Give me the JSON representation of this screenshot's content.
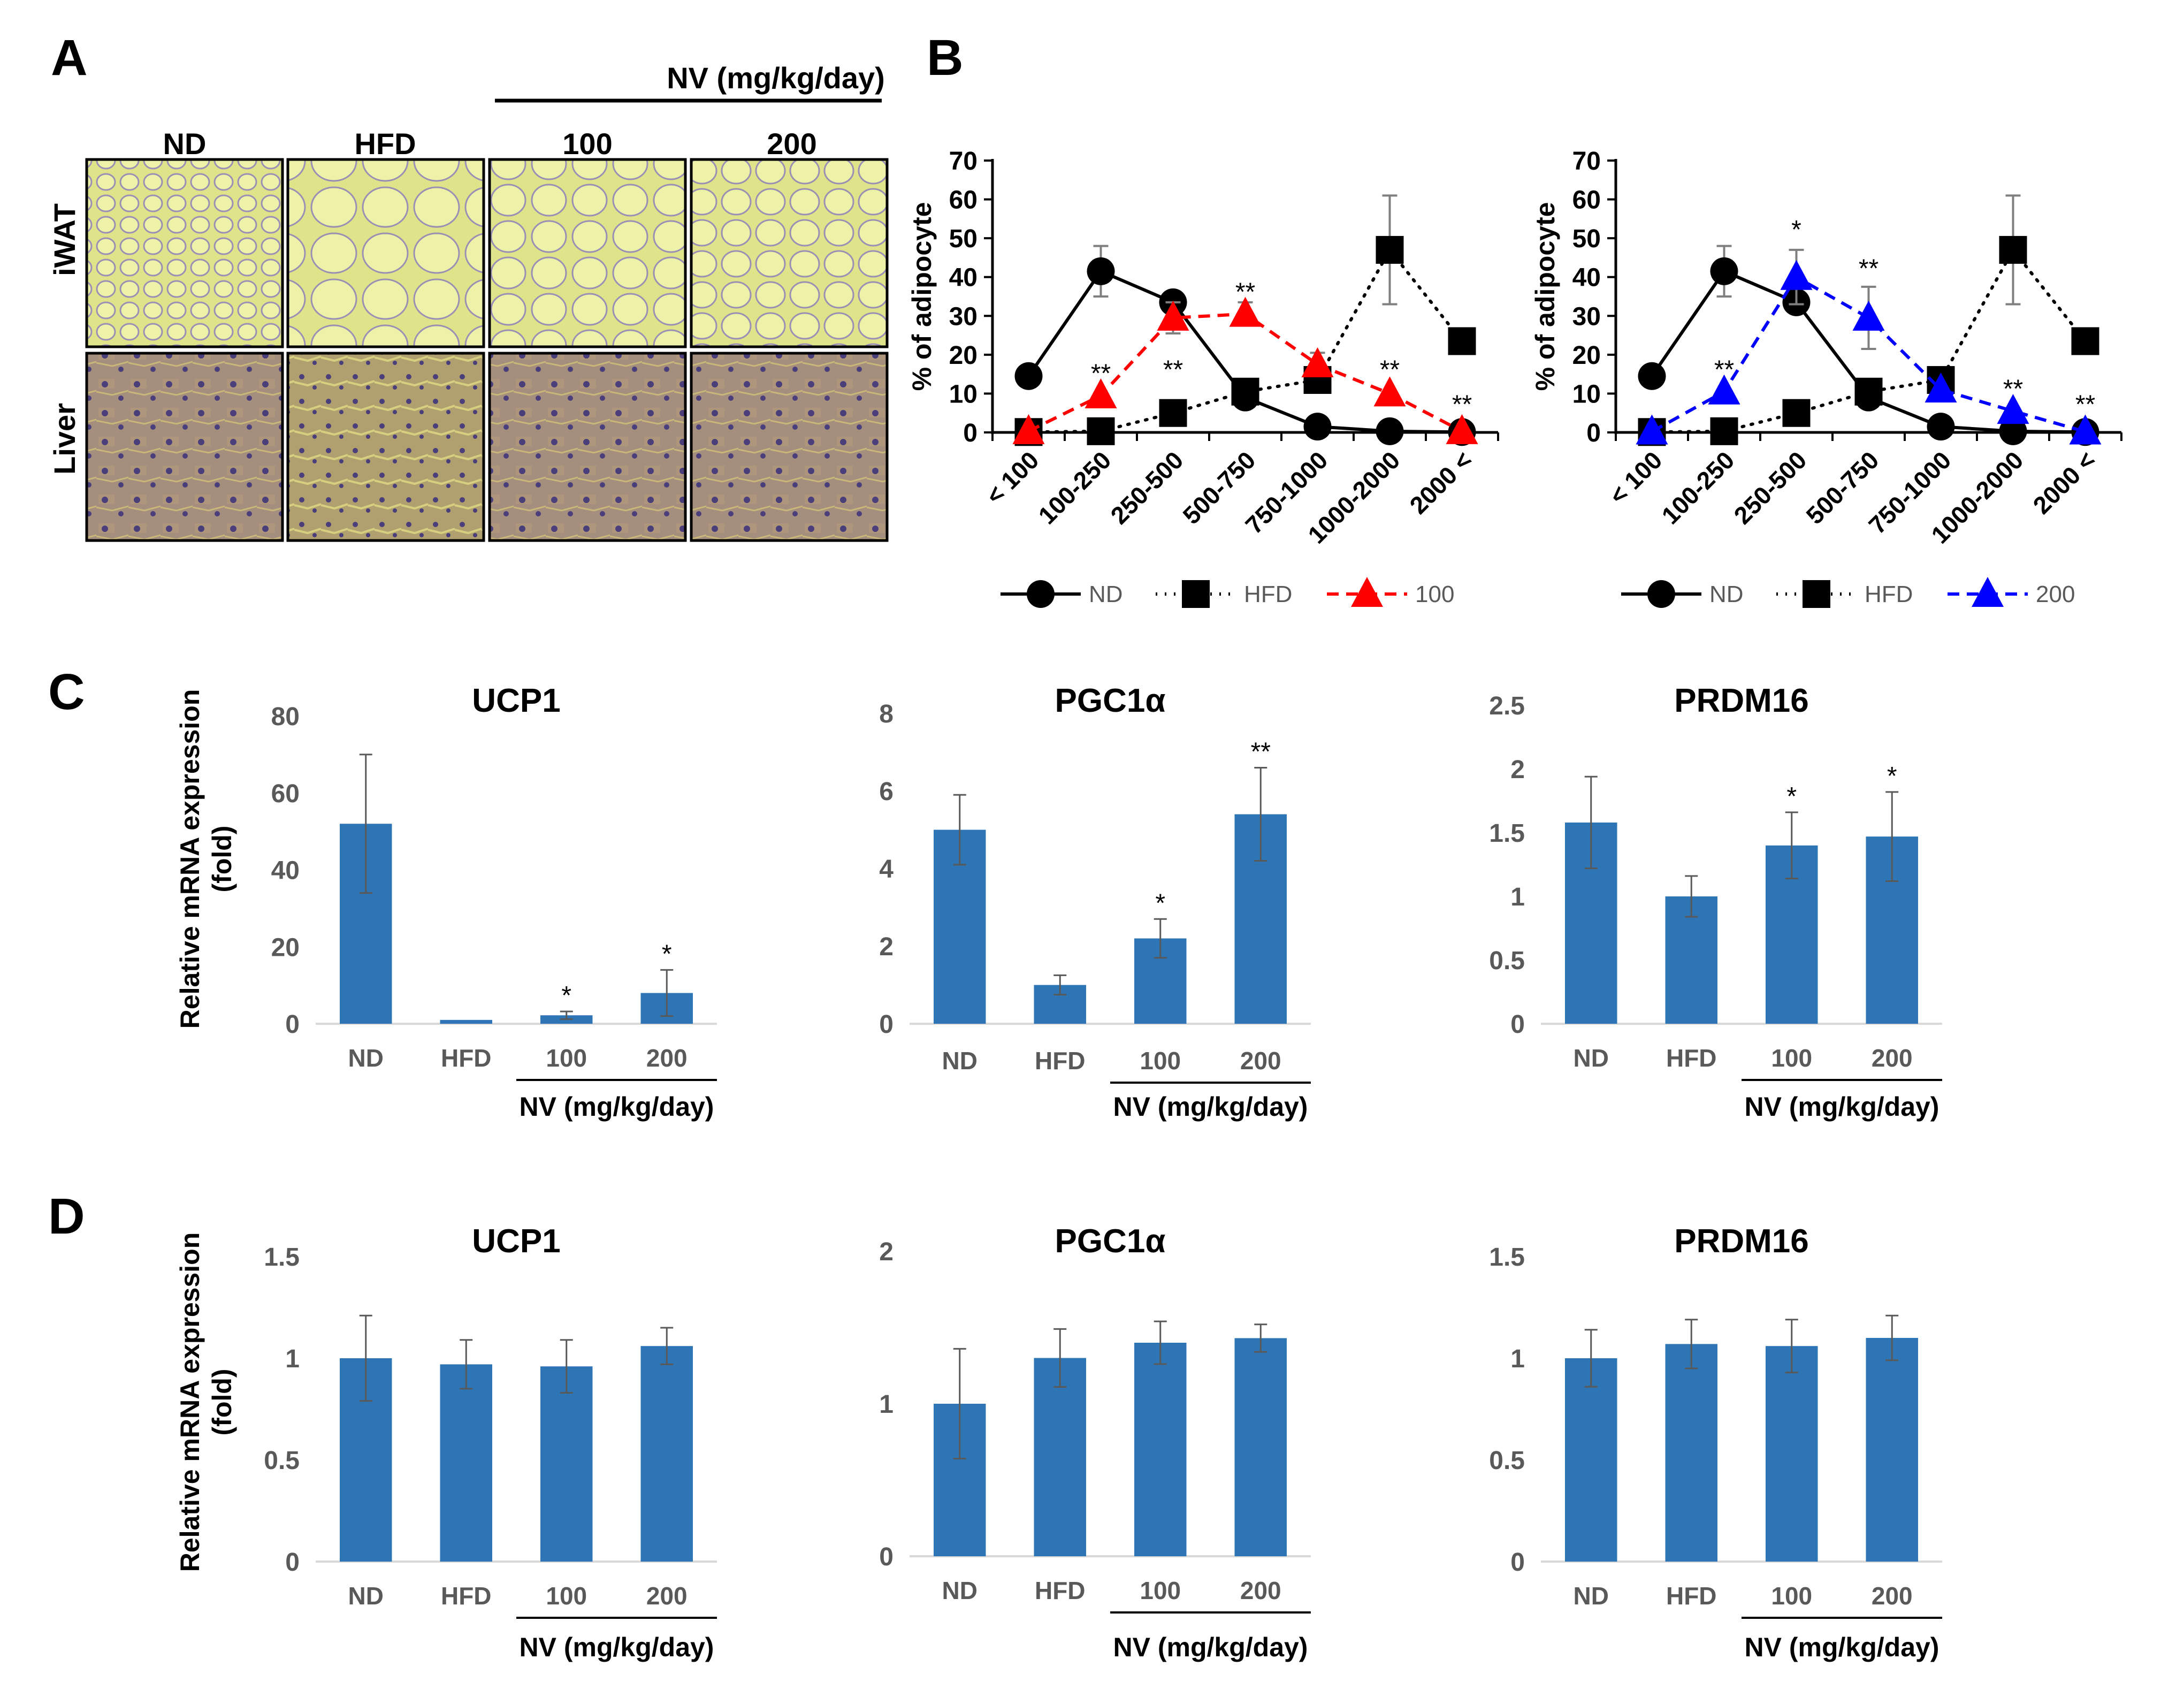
{
  "panel_a": {
    "letter": "A",
    "group_label": "NV (mg/kg/day)",
    "columns": [
      "ND",
      "HFD",
      "100",
      "200"
    ],
    "rows": [
      "iWAT",
      "Liver"
    ],
    "colors": {
      "iwat_bg": "#dfe38a",
      "iwat_cell": "#eef1a8",
      "iwat_membrane": "#9a8fb4",
      "liver_bg": "#a48e7e",
      "liver_nuclei": "#4a3f7a"
    }
  },
  "panel_b_letter": "B",
  "panel_c_letter": "C",
  "panel_d_letter": "D",
  "shared_group_label": "NV (mg/kg/day)",
  "ylabel_expr": [
    "Relative mRNA expression",
    "(fold)"
  ],
  "chart_data": [
    {
      "id": "b_left",
      "type": "line",
      "categories": [
        "< 100",
        "100-250",
        "250-500",
        "500-750",
        "750-1000",
        "1000-2000",
        "2000 <"
      ],
      "ylabel": "% of adipocyte",
      "ylim": [
        0,
        70
      ],
      "yticks": [
        0,
        10,
        20,
        30,
        40,
        50,
        60,
        70
      ],
      "series": [
        {
          "name": "ND",
          "values": [
            14.5,
            41.5,
            33.5,
            9,
            1.5,
            0.3,
            0.1
          ],
          "errors": [
            0,
            6.5,
            1.5,
            0,
            0,
            0,
            0
          ],
          "color": "#000000",
          "style": "solid",
          "marker": "circle"
        },
        {
          "name": "HFD",
          "values": [
            0.1,
            0.3,
            5,
            10.5,
            13.5,
            47,
            23.5
          ],
          "errors": [
            0,
            0,
            0,
            0,
            3,
            14,
            0
          ],
          "color": "#000000",
          "style": "dotted",
          "marker": "square"
        },
        {
          "name": "100",
          "values": [
            0.3,
            9.5,
            29.5,
            30.5,
            17.5,
            10,
            0.3
          ],
          "errors": [
            0,
            0,
            4,
            3,
            3,
            0,
            0
          ],
          "color": "#ff0000",
          "style": "dashed",
          "marker": "triangle"
        }
      ],
      "annotations": [
        {
          "x": "100-250",
          "text": "**",
          "y": 13
        },
        {
          "x": "250-500",
          "text": "**",
          "y": 14
        },
        {
          "x": "500-750",
          "text": "**",
          "y": 34
        },
        {
          "x": "1000-2000",
          "text": "**",
          "y": 14
        },
        {
          "x": "2000 <",
          "text": "**",
          "y": 5
        }
      ]
    },
    {
      "id": "b_right",
      "type": "line",
      "categories": [
        "< 100",
        "100-250",
        "250-500",
        "500-750",
        "750-1000",
        "1000-2000",
        "2000 <"
      ],
      "ylabel": "% of adipocyte",
      "ylim": [
        0,
        70
      ],
      "yticks": [
        0,
        10,
        20,
        30,
        40,
        50,
        60,
        70
      ],
      "series": [
        {
          "name": "ND",
          "values": [
            14.5,
            41.5,
            33.5,
            9,
            1.5,
            0.3,
            0.1
          ],
          "errors": [
            0,
            6.5,
            1.5,
            0,
            0,
            0,
            0
          ],
          "color": "#000000",
          "style": "solid",
          "marker": "circle"
        },
        {
          "name": "HFD",
          "values": [
            0.1,
            0.3,
            5,
            10.5,
            13.5,
            47,
            23.5
          ],
          "errors": [
            0,
            0,
            0,
            0,
            3,
            14,
            0
          ],
          "color": "#000000",
          "style": "dotted",
          "marker": "square"
        },
        {
          "name": "200",
          "values": [
            0.2,
            10.5,
            40,
            29.5,
            11,
            5.5,
            0.2
          ],
          "errors": [
            0,
            0,
            7,
            8,
            0,
            0,
            0
          ],
          "color": "#0000ff",
          "style": "dashed",
          "marker": "triangle"
        }
      ],
      "annotations": [
        {
          "x": "100-250",
          "text": "**",
          "y": 14
        },
        {
          "x": "250-500",
          "text": "*",
          "y": 50
        },
        {
          "x": "500-750",
          "text": "**",
          "y": 40
        },
        {
          "x": "1000-2000",
          "text": "**",
          "y": 9
        },
        {
          "x": "2000 <",
          "text": "**",
          "y": 5
        }
      ]
    },
    {
      "id": "c_ucp1",
      "type": "bar",
      "title": "UCP1",
      "categories": [
        "ND",
        "HFD",
        "100",
        "200"
      ],
      "values": [
        52,
        1,
        2.2,
        8
      ],
      "errors": [
        18,
        0,
        1,
        6
      ],
      "stars": [
        "",
        "",
        "*",
        "*"
      ],
      "ylim": [
        0,
        80
      ],
      "yticks": [
        0,
        20,
        40,
        60,
        80
      ]
    },
    {
      "id": "c_pgc1a",
      "type": "bar",
      "title": "PGC1α",
      "categories": [
        "ND",
        "HFD",
        "100",
        "200"
      ],
      "values": [
        5,
        1,
        2.2,
        5.4
      ],
      "errors": [
        0.9,
        0.25,
        0.5,
        1.2
      ],
      "stars": [
        "",
        "",
        "*",
        "**"
      ],
      "ylim": [
        0,
        8
      ],
      "yticks": [
        0,
        2,
        4,
        6,
        8
      ]
    },
    {
      "id": "c_prdm16",
      "type": "bar",
      "title": "PRDM16",
      "categories": [
        "ND",
        "HFD",
        "100",
        "200"
      ],
      "values": [
        1.58,
        1.0,
        1.4,
        1.47
      ],
      "errors": [
        0.36,
        0.16,
        0.26,
        0.35
      ],
      "stars": [
        "",
        "",
        "*",
        "*"
      ],
      "ylim": [
        0,
        2.5
      ],
      "yticks": [
        "0",
        "0.5",
        "1",
        "1.5",
        "2",
        "2.5"
      ]
    },
    {
      "id": "d_ucp1",
      "type": "bar",
      "title": "UCP1",
      "categories": [
        "ND",
        "HFD",
        "100",
        "200"
      ],
      "values": [
        1.0,
        0.97,
        0.96,
        1.06
      ],
      "errors": [
        0.21,
        0.12,
        0.13,
        0.09
      ],
      "stars": [
        "",
        "",
        "",
        ""
      ],
      "ylim": [
        0,
        1.5
      ],
      "yticks": [
        "0",
        "0.5",
        "1",
        "1.5"
      ]
    },
    {
      "id": "d_pgc1a",
      "type": "bar",
      "title": "PGC1α",
      "categories": [
        "ND",
        "HFD",
        "100",
        "200"
      ],
      "values": [
        1.0,
        1.3,
        1.4,
        1.43
      ],
      "errors": [
        0.36,
        0.19,
        0.14,
        0.09
      ],
      "stars": [
        "",
        "",
        "",
        ""
      ],
      "ylim": [
        0,
        2
      ],
      "yticks": [
        "0",
        "1",
        "2"
      ]
    },
    {
      "id": "d_prdm16",
      "type": "bar",
      "title": "PRDM16",
      "categories": [
        "ND",
        "HFD",
        "100",
        "200"
      ],
      "values": [
        1.0,
        1.07,
        1.06,
        1.1
      ],
      "errors": [
        0.14,
        0.12,
        0.13,
        0.11
      ],
      "stars": [
        "",
        "",
        "",
        ""
      ],
      "ylim": [
        0,
        1.5
      ],
      "yticks": [
        "0",
        "0.5",
        "1",
        "1.5"
      ]
    }
  ]
}
